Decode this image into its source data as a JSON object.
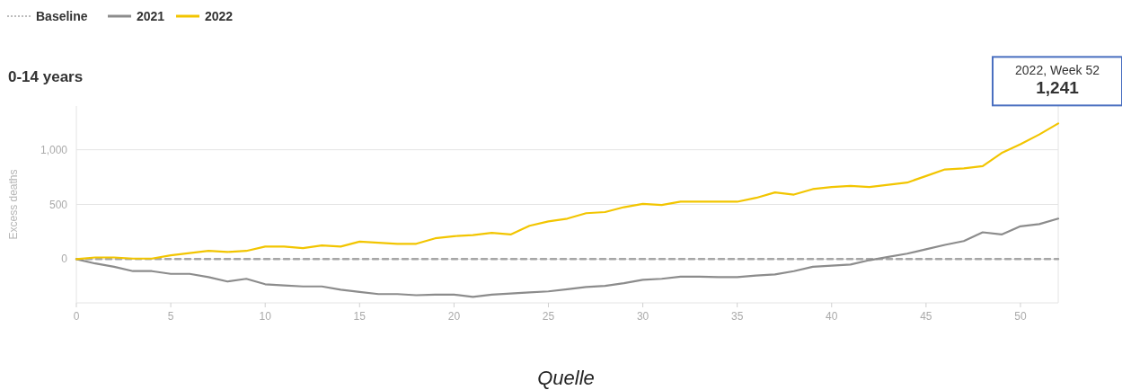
{
  "chart_data": {
    "type": "line",
    "title": "0-14 years",
    "ylabel": "Excess deaths",
    "x": [
      0,
      1,
      2,
      3,
      4,
      5,
      6,
      7,
      8,
      9,
      10,
      11,
      12,
      13,
      14,
      15,
      16,
      17,
      18,
      19,
      20,
      21,
      22,
      23,
      24,
      25,
      26,
      27,
      28,
      29,
      30,
      31,
      32,
      33,
      34,
      35,
      36,
      37,
      38,
      39,
      40,
      41,
      42,
      43,
      44,
      45,
      46,
      47,
      48,
      49,
      50,
      51,
      52
    ],
    "series": [
      {
        "name": "Baseline",
        "color": "#a6a6a6",
        "line_style": "dashed",
        "values": [
          0,
          0,
          0,
          0,
          0,
          0,
          0,
          0,
          0,
          0,
          0,
          0,
          0,
          0,
          0,
          0,
          0,
          0,
          0,
          0,
          0,
          0,
          0,
          0,
          0,
          0,
          0,
          0,
          0,
          0,
          0,
          0,
          0,
          0,
          0,
          0,
          0,
          0,
          0,
          0,
          0,
          0,
          0,
          0,
          0,
          0,
          0,
          0,
          0,
          0,
          0,
          0,
          0
        ]
      },
      {
        "name": "2021",
        "color": "#8c8c8c",
        "line_style": "solid",
        "values": [
          0,
          -40,
          -70,
          -110,
          -110,
          -135,
          -135,
          -165,
          -205,
          -180,
          -230,
          -240,
          -250,
          -250,
          -280,
          -300,
          -320,
          -320,
          -330,
          -325,
          -325,
          -345,
          -325,
          -315,
          -305,
          -295,
          -275,
          -255,
          -245,
          -220,
          -190,
          -180,
          -160,
          -160,
          -165,
          -165,
          -150,
          -140,
          -110,
          -70,
          -60,
          -50,
          -10,
          20,
          50,
          90,
          130,
          165,
          245,
          225,
          300,
          320,
          370
        ]
      },
      {
        "name": "2022",
        "color": "#f2c500",
        "line_style": "solid",
        "values": [
          0,
          15,
          15,
          5,
          5,
          35,
          55,
          75,
          65,
          75,
          115,
          115,
          100,
          125,
          115,
          160,
          150,
          140,
          140,
          190,
          210,
          220,
          240,
          225,
          305,
          345,
          370,
          420,
          430,
          475,
          505,
          495,
          525,
          525,
          525,
          525,
          560,
          610,
          590,
          640,
          660,
          670,
          660,
          680,
          700,
          760,
          820,
          830,
          850,
          970,
          1050,
          1140,
          1241
        ]
      }
    ],
    "xlim": [
      0,
      52
    ],
    "xticks": [
      0,
      5,
      10,
      15,
      20,
      25,
      30,
      35,
      40,
      45,
      50
    ],
    "ylim": [
      -400,
      1400
    ],
    "yticks": [
      0,
      500,
      {
        "value": 1000,
        "label": "1,000"
      }
    ],
    "grid": "y",
    "legend": "top left",
    "annotations": [
      {
        "text": "2022, Week 52\n1,241",
        "x": 52,
        "y": 1241
      },
      "Quelle"
    ]
  }
}
